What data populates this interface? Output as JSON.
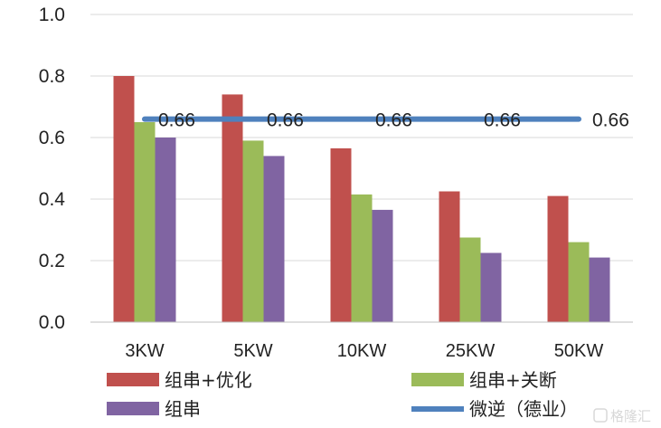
{
  "chart_data": {
    "type": "bar",
    "categories": [
      "3KW",
      "5KW",
      "10KW",
      "25KW",
      "50KW"
    ],
    "series": [
      {
        "name": "组串+优化",
        "values": [
          0.8,
          0.74,
          0.565,
          0.425,
          0.41
        ],
        "color": "#c0504d"
      },
      {
        "name": "组串+关断",
        "values": [
          0.65,
          0.59,
          0.415,
          0.275,
          0.26
        ],
        "color": "#9bbb59"
      },
      {
        "name": "组串",
        "values": [
          0.6,
          0.54,
          0.365,
          0.225,
          0.21
        ],
        "color": "#8064a2"
      }
    ],
    "line_series": {
      "name": "微逆（德业）",
      "values": [
        0.66,
        0.66,
        0.66,
        0.66,
        0.66
      ],
      "labels": [
        "0.66",
        "0.66",
        "0.66",
        "0.66",
        "0.66"
      ],
      "color": "#4f81bd"
    },
    "ylim": [
      0,
      1.0
    ],
    "yticks": [
      "0.0",
      "0.2",
      "0.4",
      "0.6",
      "0.8",
      "1.0"
    ],
    "grid": true,
    "legend_position": "bottom"
  },
  "watermark": "格隆汇"
}
